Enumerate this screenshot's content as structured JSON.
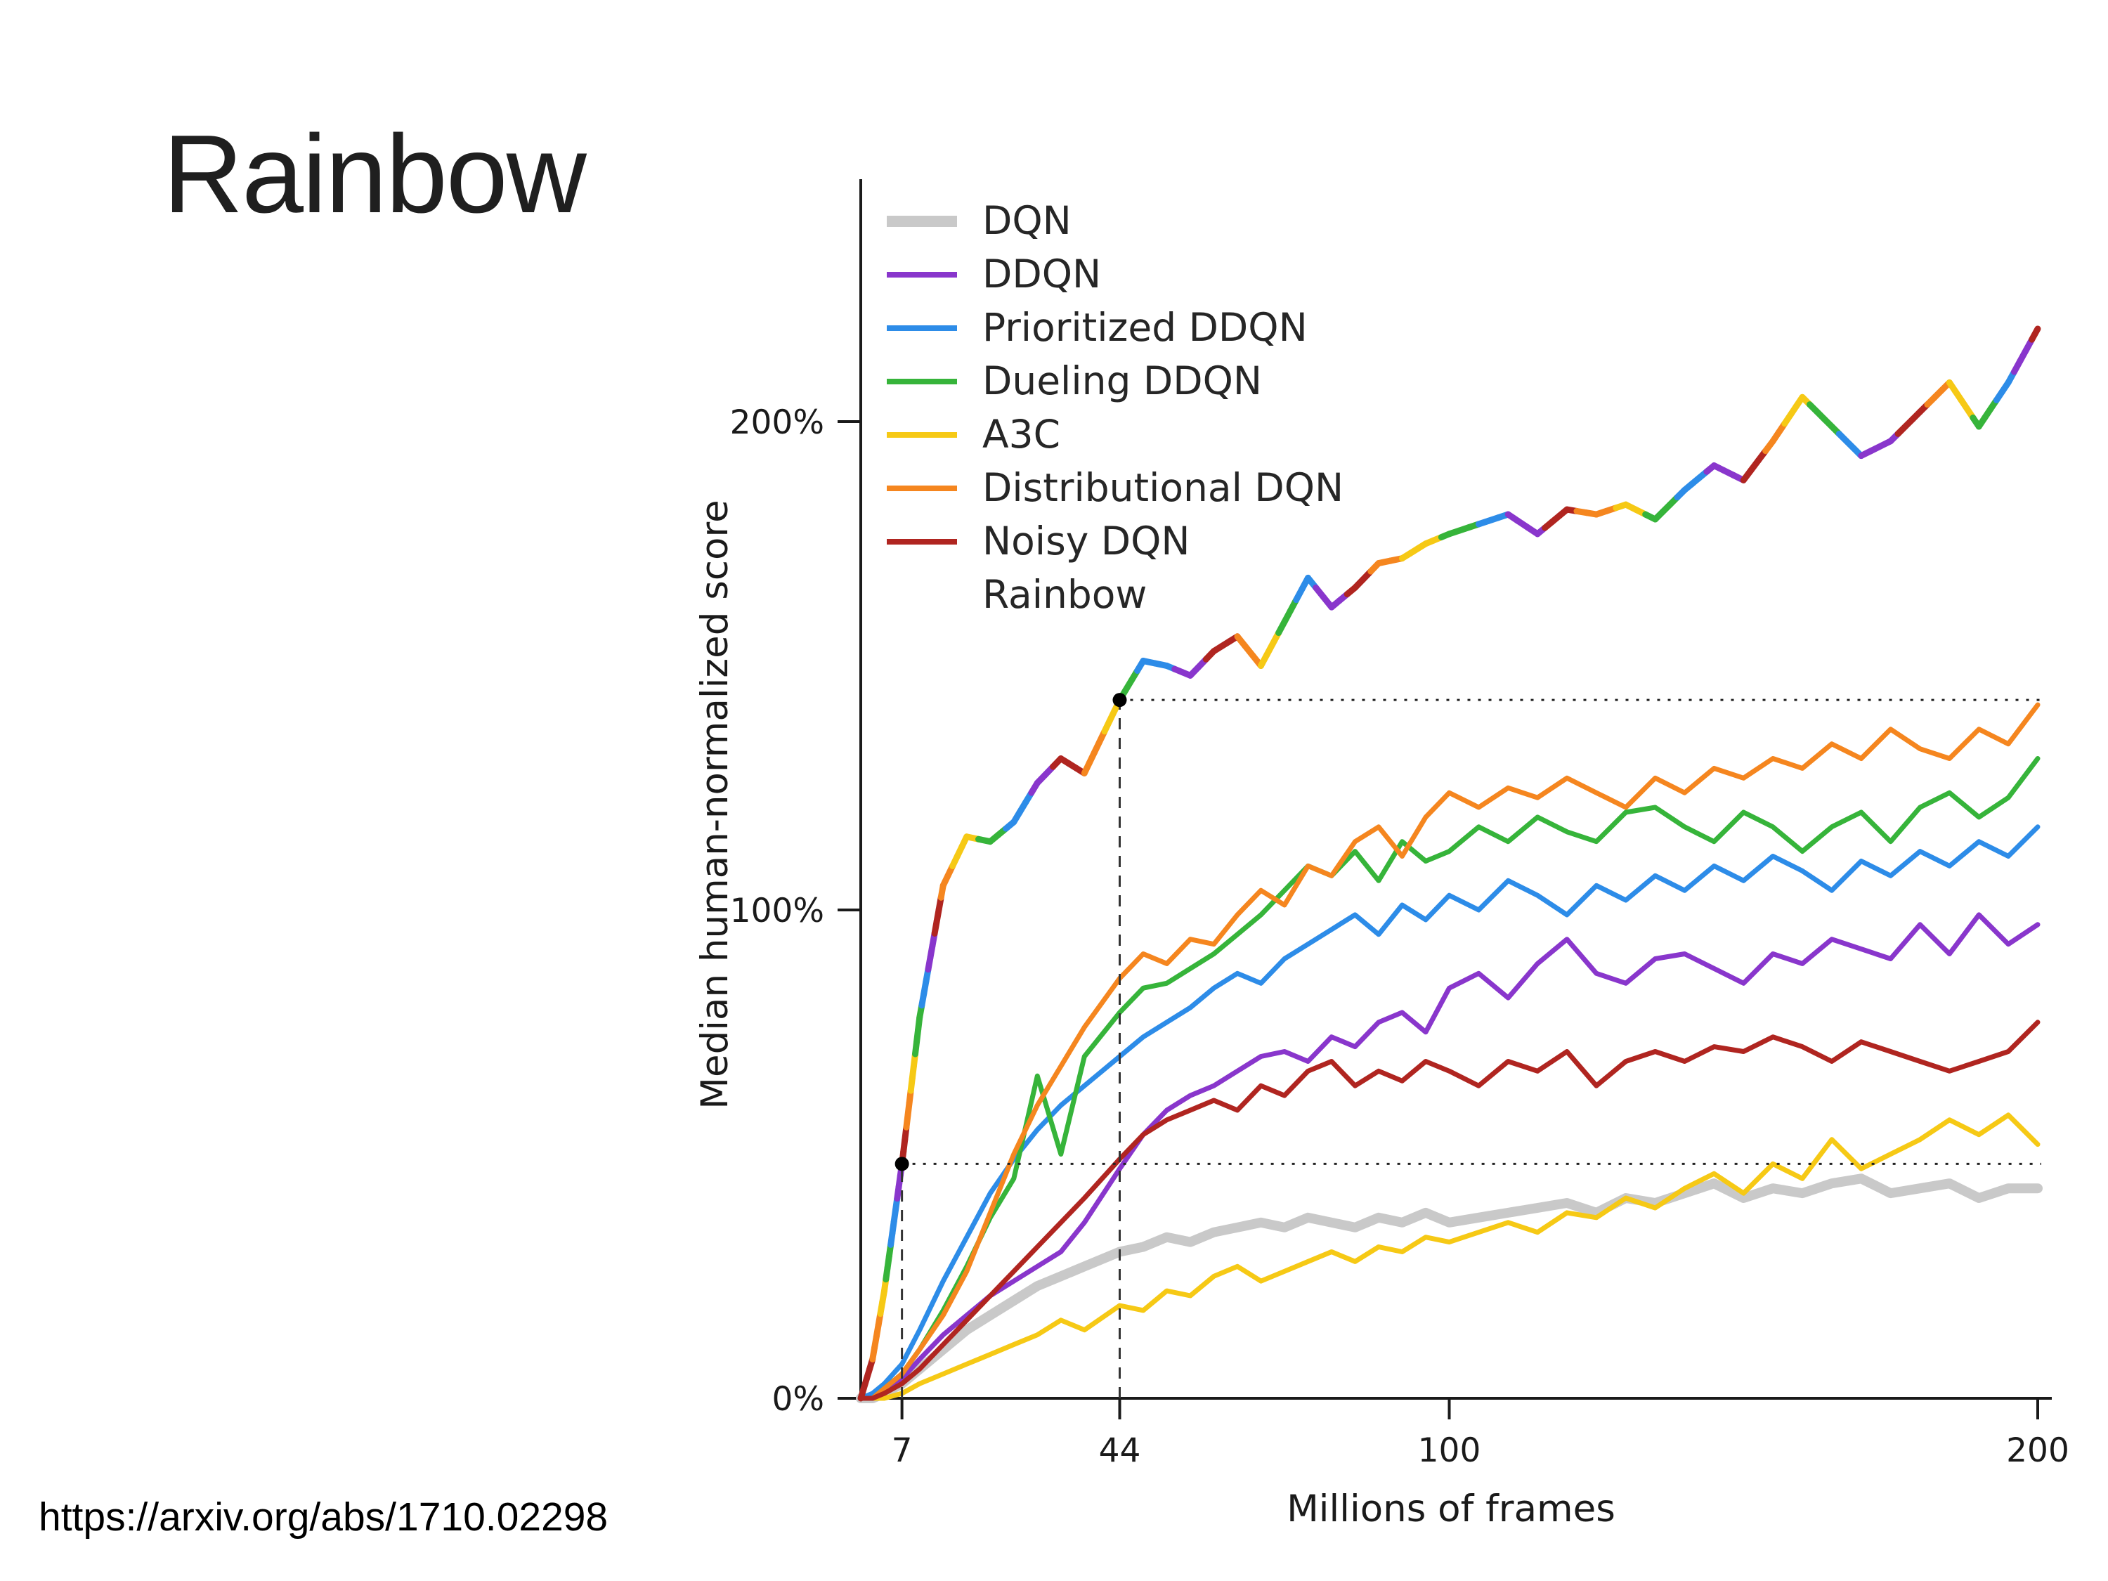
{
  "slide": {
    "title": "Rainbow",
    "source_url": "https://arxiv.org/abs/1710.02298"
  },
  "chart_data": {
    "type": "line",
    "title": "",
    "xlabel": "Millions of frames",
    "ylabel": "Median human-normalized score",
    "xlim": [
      0,
      200
    ],
    "ylim": [
      0,
      230
    ],
    "grid": false,
    "legend_position": "upper left",
    "x_ticks": [
      {
        "value": 7,
        "label": "7"
      },
      {
        "value": 44,
        "label": "44"
      },
      {
        "value": 100,
        "label": "100"
      },
      {
        "value": 200,
        "label": "200"
      }
    ],
    "y_ticks": [
      {
        "value": 0,
        "label": "0%"
      },
      {
        "value": 100,
        "label": "100%"
      },
      {
        "value": 200,
        "label": "200%"
      }
    ],
    "x": [
      0,
      2,
      4,
      7,
      10,
      14,
      18,
      22,
      26,
      30,
      34,
      38,
      44,
      48,
      52,
      56,
      60,
      64,
      68,
      72,
      76,
      80,
      84,
      88,
      92,
      96,
      100,
      105,
      110,
      115,
      120,
      125,
      130,
      135,
      140,
      145,
      150,
      155,
      160,
      165,
      170,
      175,
      180,
      185,
      190,
      195,
      200
    ],
    "series": [
      {
        "name": "DQN",
        "color": "#c9c9c9",
        "values": [
          0,
          0,
          1,
          3,
          6,
          10,
          14,
          17,
          20,
          23,
          25,
          27,
          30,
          31,
          33,
          32,
          34,
          35,
          36,
          35,
          37,
          36,
          35,
          37,
          36,
          38,
          36,
          37,
          38,
          39,
          40,
          38,
          41,
          40,
          42,
          44,
          41,
          43,
          42,
          44,
          45,
          42,
          43,
          44,
          41,
          43,
          43
        ]
      },
      {
        "name": "DDQN",
        "color": "#8936cc",
        "values": [
          0,
          0,
          1,
          4,
          8,
          13,
          17,
          21,
          24,
          27,
          30,
          36,
          47,
          54,
          59,
          62,
          64,
          67,
          70,
          71,
          69,
          74,
          72,
          77,
          79,
          75,
          84,
          87,
          82,
          89,
          94,
          87,
          85,
          90,
          91,
          88,
          85,
          91,
          89,
          94,
          92,
          90,
          97,
          91,
          99,
          93,
          97
        ]
      },
      {
        "name": "Prioritized DDQN",
        "color": "#2d8ce8",
        "values": [
          0,
          1,
          3,
          7,
          14,
          24,
          33,
          42,
          49,
          55,
          60,
          64,
          70,
          74,
          77,
          80,
          84,
          87,
          85,
          90,
          93,
          96,
          99,
          95,
          101,
          98,
          103,
          100,
          106,
          103,
          99,
          105,
          102,
          107,
          104,
          109,
          106,
          111,
          108,
          104,
          110,
          107,
          112,
          109,
          114,
          111,
          117
        ]
      },
      {
        "name": "Dueling DDQN",
        "color": "#36b43a",
        "values": [
          0,
          0,
          2,
          5,
          10,
          18,
          27,
          37,
          45,
          66,
          50,
          70,
          79,
          84,
          85,
          88,
          91,
          95,
          99,
          104,
          109,
          107,
          112,
          106,
          114,
          110,
          112,
          117,
          114,
          119,
          116,
          114,
          120,
          121,
          117,
          114,
          120,
          117,
          112,
          117,
          120,
          114,
          121,
          124,
          119,
          123,
          131
        ]
      },
      {
        "name": "A3C",
        "color": "#f6c915",
        "values": [
          0,
          0,
          0,
          1,
          3,
          5,
          7,
          9,
          11,
          13,
          16,
          14,
          19,
          18,
          22,
          21,
          25,
          27,
          24,
          26,
          28,
          30,
          28,
          31,
          30,
          33,
          32,
          34,
          36,
          34,
          38,
          37,
          41,
          39,
          43,
          46,
          42,
          48,
          45,
          53,
          47,
          50,
          53,
          57,
          54,
          58,
          52
        ]
      },
      {
        "name": "Distributional DQN",
        "color": "#f5861f",
        "values": [
          0,
          0,
          2,
          5,
          10,
          17,
          26,
          38,
          50,
          60,
          68,
          76,
          86,
          91,
          89,
          94,
          93,
          99,
          104,
          101,
          109,
          107,
          114,
          117,
          111,
          119,
          124,
          121,
          125,
          123,
          127,
          124,
          121,
          127,
          124,
          129,
          127,
          131,
          129,
          134,
          131,
          137,
          133,
          131,
          137,
          134,
          142
        ]
      },
      {
        "name": "Noisy DQN",
        "color": "#b02520",
        "values": [
          0,
          0,
          1,
          3,
          6,
          11,
          16,
          21,
          26,
          31,
          36,
          41,
          49,
          54,
          57,
          59,
          61,
          59,
          64,
          62,
          67,
          69,
          64,
          67,
          65,
          69,
          67,
          64,
          69,
          67,
          71,
          64,
          69,
          71,
          69,
          72,
          71,
          74,
          72,
          69,
          73,
          71,
          69,
          67,
          69,
          71,
          77
        ]
      },
      {
        "name": "Rainbow",
        "multicolor": true,
        "colors": [
          "#b02520",
          "#f5861f",
          "#f6c915",
          "#36b43a",
          "#2d8ce8",
          "#8936cc"
        ],
        "values": [
          0,
          8,
          22,
          48,
          78,
          105,
          115,
          114,
          118,
          126,
          131,
          128,
          143,
          151,
          150,
          148,
          153,
          156,
          150,
          159,
          168,
          162,
          166,
          171,
          172,
          175,
          177,
          179,
          181,
          177,
          182,
          181,
          183,
          180,
          186,
          191,
          188,
          196,
          205,
          199,
          193,
          196,
          202,
          208,
          199,
          208,
          219
        ]
      }
    ],
    "annotations": {
      "reference_points": [
        {
          "x": 7,
          "y": 48
        },
        {
          "x": 44,
          "y": 143
        }
      ]
    }
  }
}
